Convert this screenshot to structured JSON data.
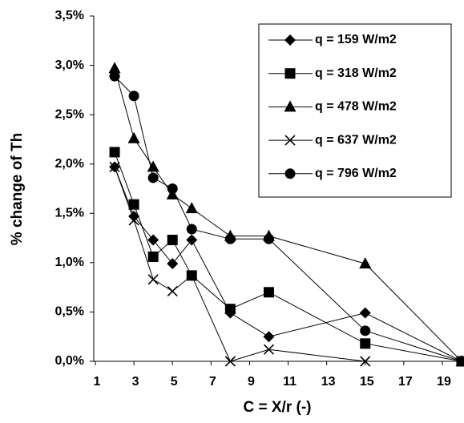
{
  "chart_data": {
    "type": "line",
    "xlabel": "C = X/r (-)",
    "ylabel": "% change of Th",
    "x": [
      2,
      3,
      4,
      5,
      6,
      8,
      10,
      15,
      20
    ],
    "xlim": [
      1,
      20
    ],
    "xticks": [
      1,
      3,
      5,
      7,
      9,
      11,
      13,
      15,
      17,
      19
    ],
    "ylim": [
      0,
      3.5
    ],
    "yticks": [
      {
        "value": 0,
        "label": "0,0%"
      },
      {
        "value": 0.5,
        "label": "0,5%"
      },
      {
        "value": 1,
        "label": "1,0%"
      },
      {
        "value": 1.5,
        "label": "1,5%"
      },
      {
        "value": 2,
        "label": "2,0%"
      },
      {
        "value": 2.5,
        "label": "2,5%"
      },
      {
        "value": 3,
        "label": "3,0%"
      },
      {
        "value": 3.5,
        "label": "3,5%"
      }
    ],
    "legend": "upper right",
    "series": [
      {
        "name": "q = 159 W/m2",
        "color": "#000000",
        "marker": "diamond",
        "values": [
          1.97,
          1.47,
          1.23,
          0.99,
          1.23,
          0.49,
          0.25,
          0.49,
          0
        ]
      },
      {
        "name": "q = 318 W/m2",
        "color": "#000000",
        "marker": "square",
        "values": [
          2.12,
          1.59,
          1.06,
          1.23,
          0.87,
          0.53,
          0.7,
          0.18,
          0
        ]
      },
      {
        "name": "q = 478 W/m2",
        "color": "#000000",
        "marker": "triangle",
        "values": [
          2.97,
          2.26,
          1.97,
          1.69,
          1.55,
          1.27,
          1.27,
          0.99,
          0
        ]
      },
      {
        "name": "q = 637 W/m2",
        "color": "#000000",
        "marker": "x",
        "values": [
          1.97,
          1.43,
          0.83,
          0.71,
          0.87,
          0,
          0.12,
          0,
          0
        ]
      },
      {
        "name": "q = 796 W/m2",
        "color": "#000000",
        "marker": "circle",
        "values": [
          2.89,
          2.69,
          1.86,
          1.75,
          1.34,
          1.24,
          1.24,
          0.31,
          0
        ]
      }
    ]
  }
}
